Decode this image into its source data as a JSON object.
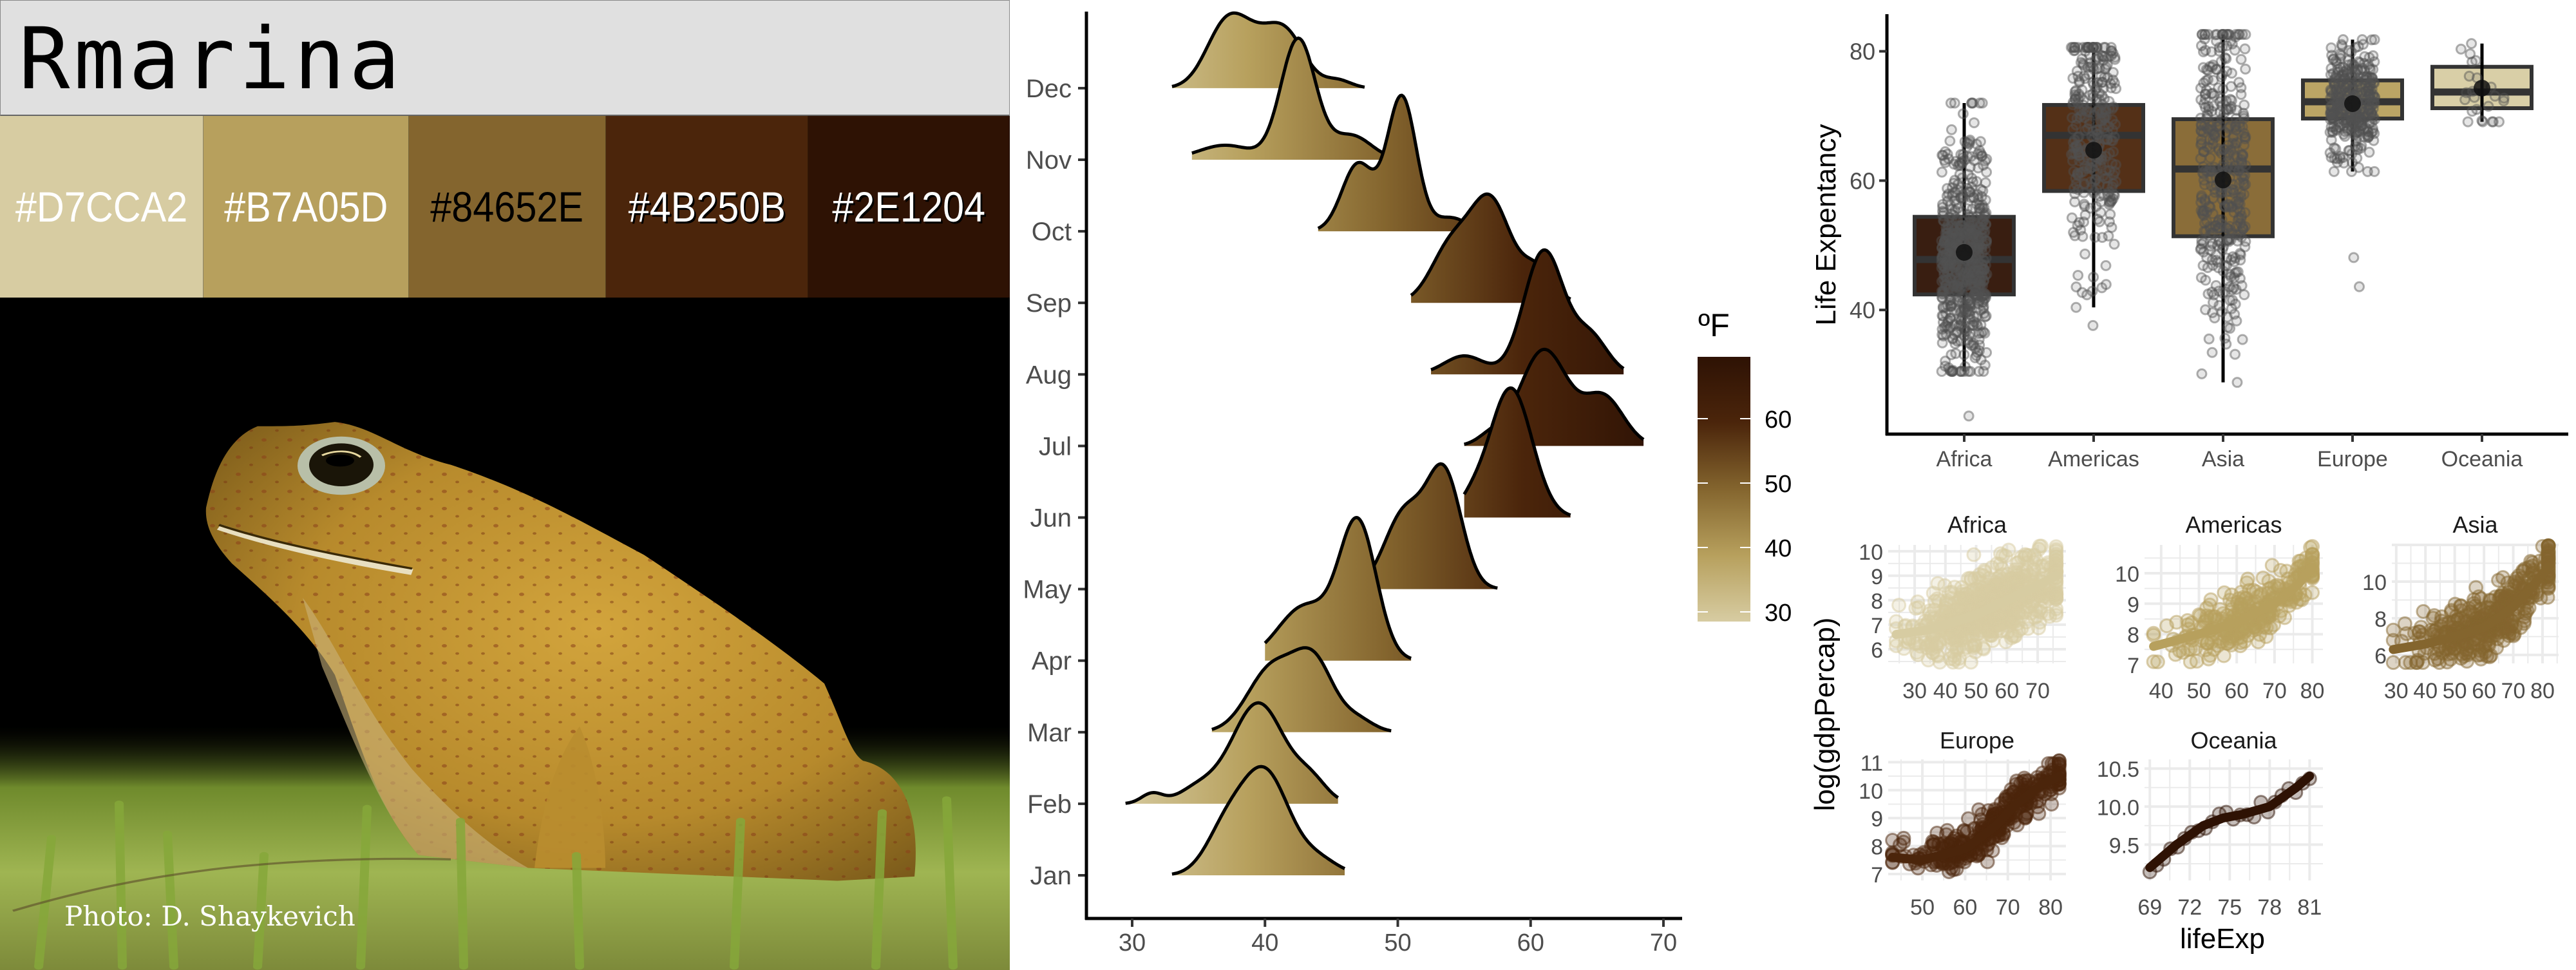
{
  "header": {
    "title": "Rmarina"
  },
  "palette": [
    {
      "hex": "#D7CCA2",
      "label": "#D7CCA2",
      "text_color": "#FFFFFF"
    },
    {
      "hex": "#B7A05D",
      "label": "#B7A05D",
      "text_color": "#FFFFFF"
    },
    {
      "hex": "#84652E",
      "label": "#84652E",
      "text_color": "#000000"
    },
    {
      "hex": "#4B250B",
      "label": "#4B250B",
      "text_color": "#FFFFFF"
    },
    {
      "hex": "#2E1204",
      "label": "#2E1204",
      "text_color": "#FFFFFF"
    }
  ],
  "photo": {
    "credit": "Photo: D. Shaykevich"
  },
  "chart_data": [
    {
      "type": "ridgeline",
      "title": "",
      "xlabel": "",
      "ylabel": "",
      "xlim": [
        26.5,
        71.5
      ],
      "x_ticks": [
        "30",
        "40",
        "50",
        "60",
        "70"
      ],
      "x_tick_values": [
        30,
        40,
        50,
        60,
        70
      ],
      "legend": {
        "title": "ºF",
        "placement": "right",
        "range": [
          28.5,
          69.6
        ],
        "ticks": [
          "30",
          "40",
          "50",
          "60"
        ],
        "tick_values": [
          30,
          40,
          50,
          60
        ]
      },
      "series": [
        {
          "name": "Jan",
          "range": [
            33,
            46
          ],
          "peak": 1.52,
          "components": [
            [
              40,
              1.8,
              1
            ],
            [
              37,
              1.5,
              0.4
            ],
            [
              44,
              1.5,
              0.15
            ]
          ]
        },
        {
          "name": "Feb",
          "range": [
            29.5,
            45.5
          ],
          "peak": 1.41,
          "components": [
            [
              39.5,
              2,
              1
            ],
            [
              31.5,
              0.8,
              0.1
            ],
            [
              35,
              1.5,
              0.15
            ],
            [
              43.5,
              1.2,
              0.2
            ]
          ]
        },
        {
          "name": "Mar",
          "range": [
            36,
            49.5
          ],
          "peak": 1.18,
          "components": [
            [
              40.5,
              1.8,
              0.8
            ],
            [
              43.7,
              1.5,
              0.85
            ],
            [
              47,
              1.2,
              0.15
            ]
          ]
        },
        {
          "name": "Apr",
          "range": [
            40,
            51
          ],
          "peak": 2.0,
          "components": [
            [
              47,
              1.4,
              1
            ],
            [
              43,
              2,
              0.4
            ]
          ]
        },
        {
          "name": "May",
          "range": [
            48,
            57.5
          ],
          "peak": 1.75,
          "components": [
            [
              53.5,
              1.3,
              0.9
            ],
            [
              50.5,
              1.5,
              0.6
            ]
          ]
        },
        {
          "name": "Jun",
          "range": [
            55,
            63
          ],
          "peak": 1.81,
          "components": [
            [
              58.5,
              1.6,
              1
            ],
            [
              55.5,
              1,
              0.1
            ]
          ]
        },
        {
          "name": "Jul",
          "range": [
            55,
            68.5
          ],
          "peak": 1.35,
          "components": [
            [
              61,
              1.8,
              1
            ],
            [
              65.5,
              1.5,
              0.5
            ],
            [
              57,
              1,
              0.1
            ]
          ]
        },
        {
          "name": "Aug",
          "range": [
            52.5,
            67
          ],
          "peak": 1.74,
          "components": [
            [
              61,
              1.5,
              1
            ],
            [
              55,
              1.5,
              0.15
            ],
            [
              64.5,
              1.3,
              0.3
            ]
          ]
        },
        {
          "name": "Sep",
          "range": [
            51,
            63
          ],
          "peak": 1.52,
          "components": [
            [
              57,
              1.5,
              0.9
            ],
            [
              54,
              1.5,
              0.5
            ],
            [
              60.5,
              1.2,
              0.3
            ]
          ]
        },
        {
          "name": "Oct",
          "range": [
            44,
            56
          ],
          "peak": 1.9,
          "components": [
            [
              50.3,
              1.1,
              1
            ],
            [
              47,
              1.2,
              0.5
            ],
            [
              54,
              1.2,
              0.1
            ]
          ]
        },
        {
          "name": "Nov",
          "range": [
            34.5,
            50
          ],
          "peak": 1.7,
          "components": [
            [
              42.5,
              1.3,
              1
            ],
            [
              37,
              2,
              0.12
            ],
            [
              46.5,
              1.5,
              0.2
            ]
          ]
        },
        {
          "name": "Dec",
          "range": [
            33,
            47.5
          ],
          "peak": 1.05,
          "components": [
            [
              37,
              1.5,
              0.75
            ],
            [
              41.5,
              1.5,
              0.7
            ],
            [
              39,
              1.5,
              0.4
            ],
            [
              45.5,
              1,
              0.1
            ]
          ]
        }
      ]
    },
    {
      "type": "boxplot",
      "title": "",
      "xlabel": "",
      "ylabel": "Life Expentancy",
      "ylim": [
        20.8,
        85.5
      ],
      "y_ticks": [
        "40",
        "60",
        "80"
      ],
      "y_tick_values": [
        40,
        60,
        80
      ],
      "categories": [
        "Africa",
        "Americas",
        "Asia",
        "Europe",
        "Oceania"
      ],
      "series": [
        {
          "name": "Africa",
          "color": "#2E1204",
          "q1": 42.4,
          "median": 47.8,
          "q3": 54.4,
          "mean": 48.9,
          "whisker_low": 30.5,
          "whisker_high": 72.0,
          "outliers": [
            23.6
          ],
          "n": 624
        },
        {
          "name": "Americas",
          "color": "#4B250B",
          "q1": 58.4,
          "median": 67.0,
          "q3": 71.7,
          "mean": 64.7,
          "whisker_low": 40.4,
          "whisker_high": 80.6,
          "outliers": [
            37.6
          ],
          "n": 300
        },
        {
          "name": "Asia",
          "color": "#84652E",
          "q1": 51.4,
          "median": 61.8,
          "q3": 69.5,
          "mean": 60.1,
          "whisker_low": 28.8,
          "whisker_high": 82.6,
          "outliers": [],
          "n": 396
        },
        {
          "name": "Europe",
          "color": "#B7A05D",
          "q1": 69.6,
          "median": 72.2,
          "q3": 75.5,
          "mean": 71.9,
          "whisker_low": 61.4,
          "whisker_high": 81.8,
          "outliers": [
            43.6,
            48.1
          ],
          "n": 360
        },
        {
          "name": "Oceania",
          "color": "#D7CCA2",
          "q1": 71.2,
          "median": 73.7,
          "q3": 77.6,
          "mean": 74.3,
          "whisker_low": 69.1,
          "whisker_high": 81.2,
          "outliers": [],
          "n": 24
        }
      ]
    },
    {
      "type": "scatter",
      "title": "",
      "xlabel": "lifeExp",
      "ylabel": "log(gdpPercap)",
      "facets": [
        {
          "name": "Africa",
          "color": "#D7CCA2",
          "n": 624,
          "xlim": [
            21.4,
            79.2
          ],
          "ylim": [
            5.42,
            10.26
          ],
          "x_ticks": [
            "30",
            "40",
            "50",
            "60",
            "70"
          ],
          "x_tick_values": [
            30,
            40,
            50,
            60,
            70
          ],
          "y_ticks": [
            "6",
            "7",
            "8",
            "9",
            "10"
          ],
          "y_tick_values": [
            6,
            7,
            8,
            9,
            10
          ],
          "smooth": [
            [
              24,
              6.6
            ],
            [
              35,
              6.8
            ],
            [
              50,
              7.4
            ],
            [
              60,
              8.0
            ],
            [
              70,
              8.6
            ],
            [
              76,
              9.0
            ]
          ],
          "spread": 0.75
        },
        {
          "name": "Americas",
          "color": "#B7A05D",
          "n": 300,
          "xlim": [
            35.6,
            82.8
          ],
          "ylim": [
            7.04,
            10.93
          ],
          "x_ticks": [
            "40",
            "50",
            "60",
            "70",
            "80"
          ],
          "x_tick_values": [
            40,
            50,
            60,
            70,
            80
          ],
          "y_ticks": [
            "7",
            "8",
            "9",
            "10"
          ],
          "y_tick_values": [
            7,
            8,
            9,
            10
          ],
          "smooth": [
            [
              38,
              7.6
            ],
            [
              50,
              8.0
            ],
            [
              60,
              8.4
            ],
            [
              70,
              9.0
            ],
            [
              76,
              9.6
            ],
            [
              80,
              10.2
            ]
          ],
          "spread": 0.45
        },
        {
          "name": "Asia",
          "color": "#84652E",
          "n": 396,
          "xlim": [
            28.5,
            85.5
          ],
          "ylim": [
            5.54,
            12.0
          ],
          "x_ticks": [
            "30",
            "40",
            "50",
            "60",
            "70",
            "80"
          ],
          "x_tick_values": [
            30,
            40,
            50,
            60,
            70,
            80
          ],
          "y_ticks": [
            "6",
            "8",
            "10"
          ],
          "y_tick_values": [
            6,
            8,
            10
          ],
          "smooth": [
            [
              29,
              6.3
            ],
            [
              40,
              6.6
            ],
            [
              50,
              7.0
            ],
            [
              60,
              7.5
            ],
            [
              70,
              8.6
            ],
            [
              78,
              10.0
            ],
            [
              82,
              10.8
            ]
          ],
          "spread": 0.9
        },
        {
          "name": "Europe",
          "color": "#4B250B",
          "n": 360,
          "xlim": [
            42,
            83.6
          ],
          "ylim": [
            6.77,
            11.1
          ],
          "x_ticks": [
            "50",
            "60",
            "70",
            "80"
          ],
          "x_tick_values": [
            50,
            60,
            70,
            80
          ],
          "y_ticks": [
            "7",
            "8",
            "9",
            "10",
            "11"
          ],
          "y_tick_values": [
            7,
            8,
            9,
            10,
            11
          ],
          "smooth": [
            [
              43,
              7.6
            ],
            [
              50,
              7.5
            ],
            [
              60,
              7.9
            ],
            [
              67,
              8.7
            ],
            [
              72,
              9.5
            ],
            [
              78,
              10.2
            ],
            [
              82,
              10.5
            ]
          ],
          "spread": 0.35
        },
        {
          "name": "Oceania",
          "color": "#2E1204",
          "n": 24,
          "xlim": [
            68.6,
            82.0
          ],
          "ylim": [
            9.03,
            10.62
          ],
          "x_ticks": [
            "69",
            "72",
            "75",
            "78",
            "81"
          ],
          "x_tick_values": [
            69,
            72,
            75,
            78,
            81
          ],
          "y_ticks": [
            "9.5",
            "10.0",
            "10.5"
          ],
          "y_tick_values": [
            9.5,
            10.0,
            10.5
          ],
          "smooth": [
            [
              69,
              9.2
            ],
            [
              71,
              9.5
            ],
            [
              73,
              9.75
            ],
            [
              74.5,
              9.85
            ],
            [
              76,
              9.9
            ],
            [
              78,
              10.0
            ],
            [
              80,
              10.25
            ],
            [
              81,
              10.4
            ]
          ],
          "spread": 0.05
        }
      ]
    }
  ]
}
